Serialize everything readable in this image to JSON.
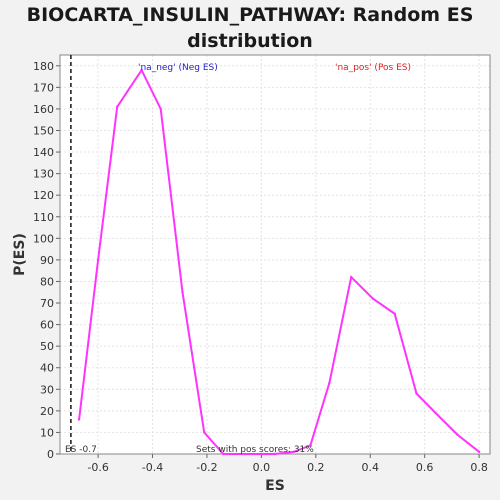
{
  "chart_data": {
    "type": "line",
    "title_line1": "BIOCARTA_INSULIN_PATHWAY: Random ES",
    "title_line2": "distribution",
    "xlabel": "ES",
    "ylabel": "P(ES)",
    "xlim": [
      -0.74,
      0.84
    ],
    "ylim": [
      0,
      185
    ],
    "xticks": [
      -0.6,
      -0.4,
      -0.2,
      0.0,
      0.2,
      0.4,
      0.6,
      0.8
    ],
    "xtick_labels": [
      "-0.6",
      "-0.4",
      "-0.2",
      "0.0",
      "0.2",
      "0.4",
      "0.6",
      "0.8"
    ],
    "yticks": [
      0,
      10,
      20,
      30,
      40,
      50,
      60,
      70,
      80,
      90,
      100,
      110,
      120,
      130,
      140,
      150,
      160,
      170,
      180
    ],
    "grid": true,
    "series": [
      {
        "color": "#ff33ff",
        "x": [
          -0.67,
          -0.6,
          -0.53,
          -0.44,
          -0.37,
          -0.29,
          -0.21,
          -0.14,
          -0.06,
          0.0,
          0.05,
          0.12,
          0.18,
          0.25,
          0.33,
          0.41,
          0.49,
          0.57,
          0.64,
          0.72,
          0.8
        ],
        "y": [
          16,
          90,
          161,
          178,
          160,
          75,
          10,
          0,
          0,
          0,
          0,
          1,
          4,
          33,
          82,
          72,
          65,
          28,
          19,
          9,
          1
        ]
      }
    ],
    "annotations": {
      "neg_label": "'na_neg' (Neg ES)",
      "pos_label": "'na_pos' (Pos ES)",
      "es_label": "ES -0.7",
      "pos_scores": "Sets with pos scores: 31%",
      "es_marker_x": -0.7
    },
    "colors": {
      "neg": "#2222cc",
      "pos": "#dd2222",
      "line": "#ff33ff"
    }
  }
}
